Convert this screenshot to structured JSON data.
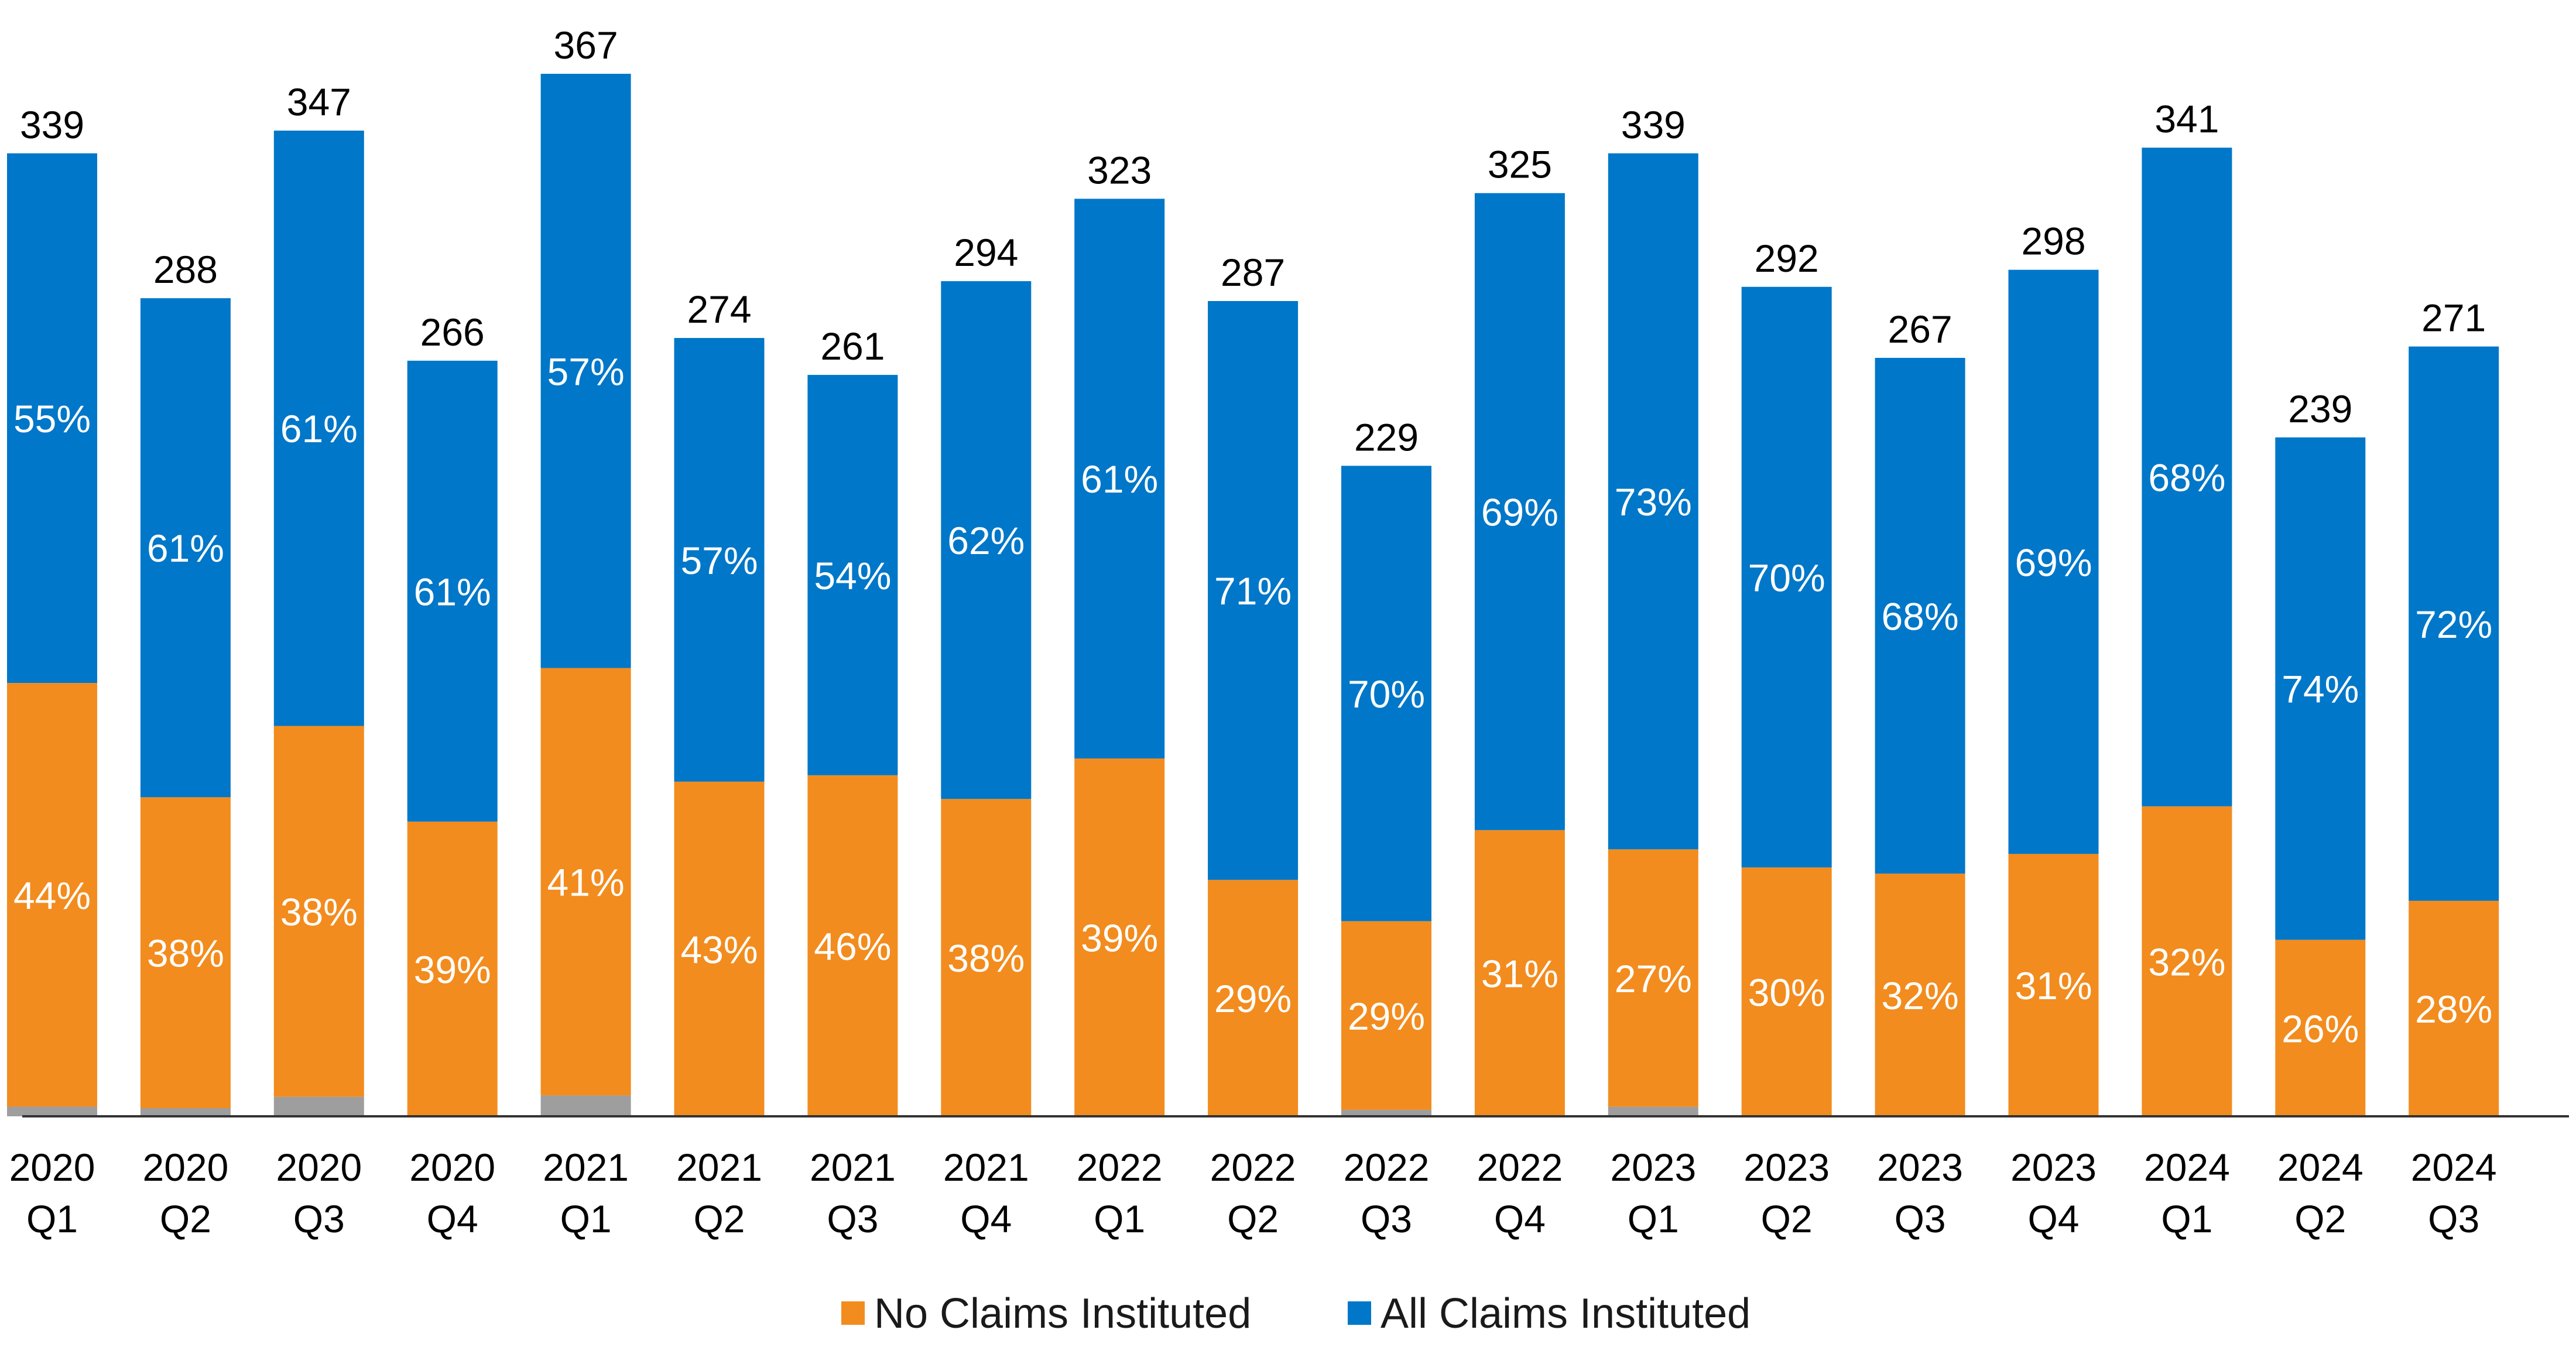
{
  "chart_data": {
    "type": "bar",
    "stacked": true,
    "categories": [
      [
        "2020",
        "Q1"
      ],
      [
        "2020",
        "Q2"
      ],
      [
        "2020",
        "Q3"
      ],
      [
        "2020",
        "Q4"
      ],
      [
        "2021",
        "Q1"
      ],
      [
        "2021",
        "Q2"
      ],
      [
        "2021",
        "Q3"
      ],
      [
        "2021",
        "Q4"
      ],
      [
        "2022",
        "Q1"
      ],
      [
        "2022",
        "Q2"
      ],
      [
        "2022",
        "Q3"
      ],
      [
        "2022",
        "Q4"
      ],
      [
        "2023",
        "Q1"
      ],
      [
        "2023",
        "Q2"
      ],
      [
        "2023",
        "Q3"
      ],
      [
        "2023",
        "Q4"
      ],
      [
        "2024",
        "Q1"
      ],
      [
        "2024",
        "Q2"
      ],
      [
        "2024",
        "Q3"
      ]
    ],
    "totals": [
      339,
      288,
      347,
      266,
      367,
      274,
      261,
      294,
      323,
      287,
      229,
      325,
      339,
      292,
      267,
      298,
      341,
      239,
      271
    ],
    "series": [
      {
        "name": "No Claims Instituted",
        "color": "#f28c1e",
        "percent_labels": [
          "44%",
          "38%",
          "38%",
          "39%",
          "41%",
          "43%",
          "46%",
          "38%",
          "39%",
          "29%",
          "29%",
          "31%",
          "27%",
          "30%",
          "32%",
          "31%",
          "32%",
          "26%",
          "28%"
        ]
      },
      {
        "name": "All Claims Instituted",
        "color": "#0077c8",
        "percent_labels": [
          "55%",
          "61%",
          "61%",
          "61%",
          "57%",
          "57%",
          "54%",
          "62%",
          "61%",
          "71%",
          "70%",
          "69%",
          "73%",
          "70%",
          "68%",
          "69%",
          "68%",
          "74%",
          "72%"
        ]
      }
    ],
    "residual_color": "#9e9e9e",
    "residual_percent": [
      1,
      1,
      2,
      0,
      2,
      0,
      0,
      0,
      0,
      0,
      1,
      0,
      1,
      0,
      0,
      0,
      0,
      0,
      0
    ],
    "ylim": [
      0,
      367
    ],
    "grid": false,
    "legend_position": "bottom-center"
  }
}
